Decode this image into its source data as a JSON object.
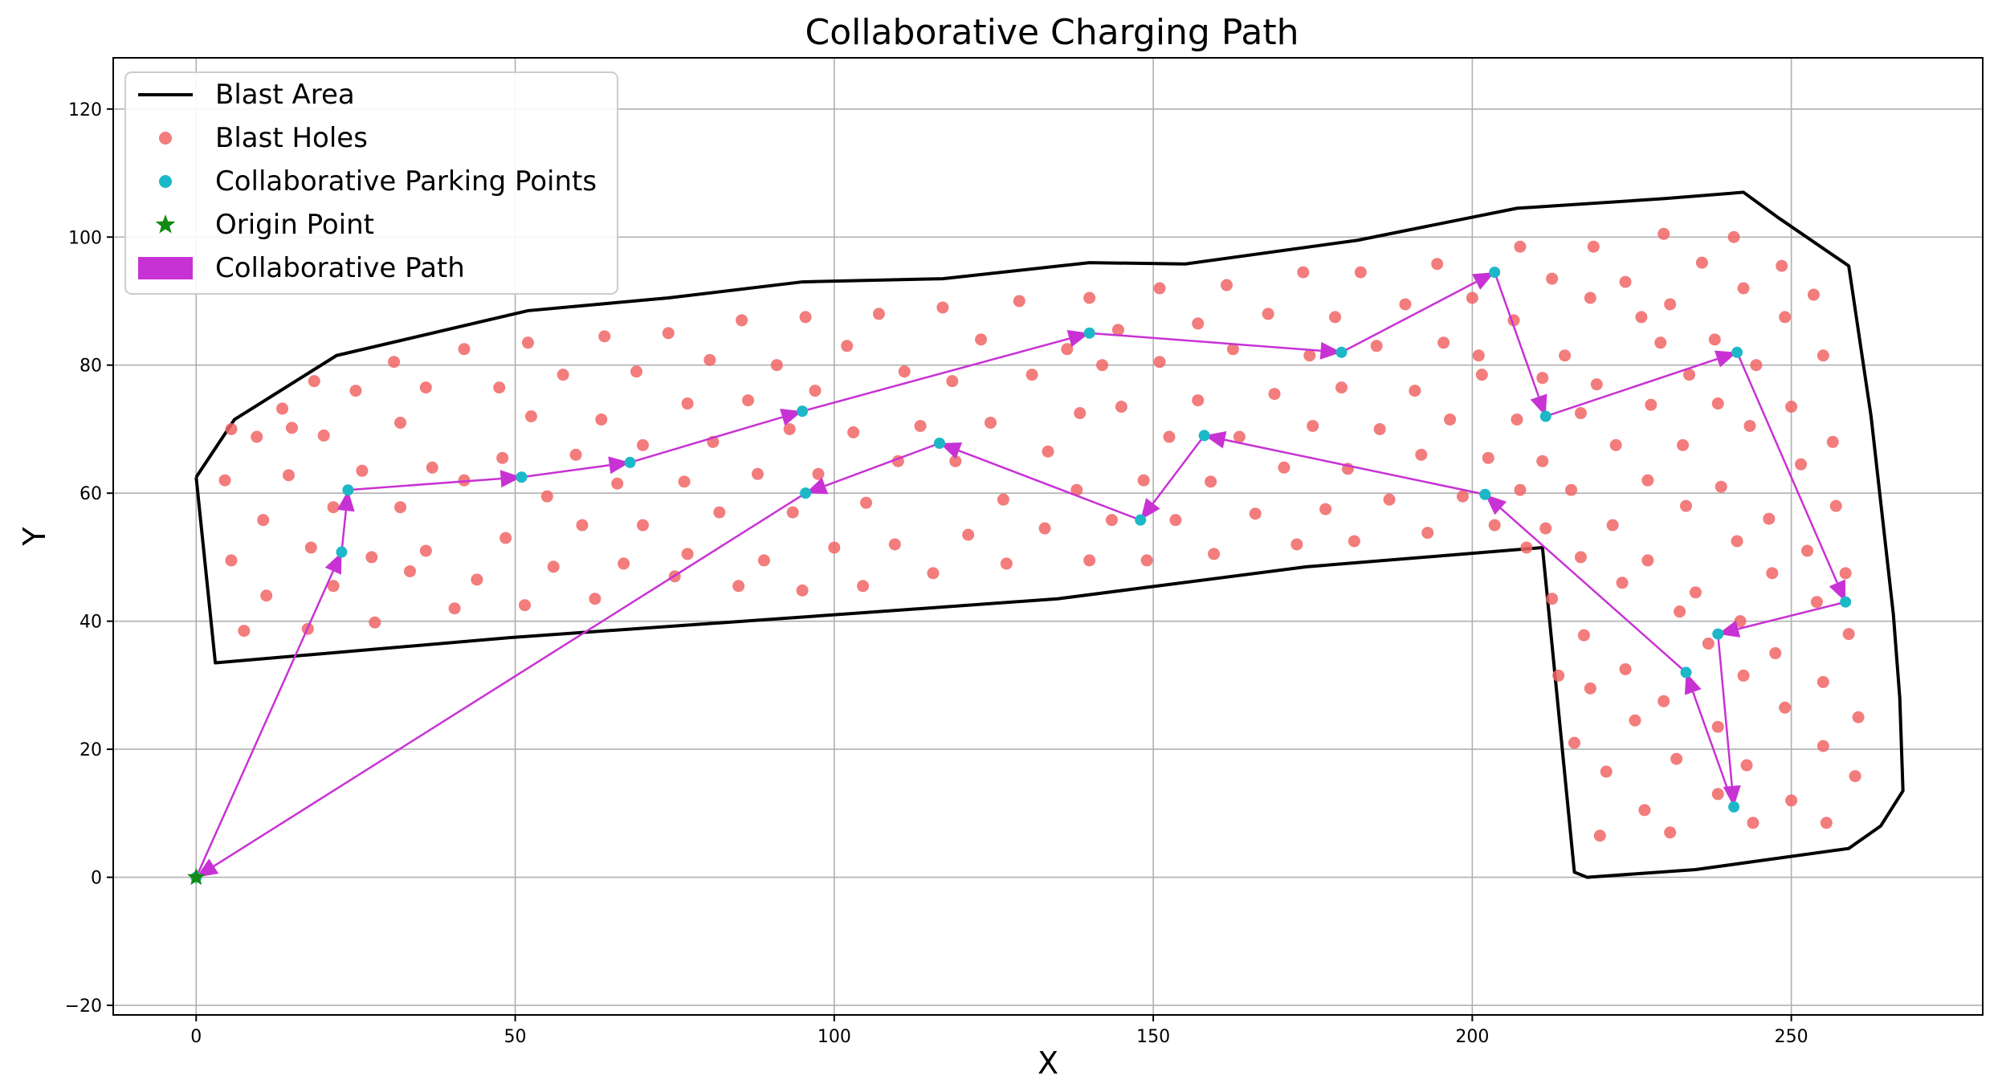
{
  "chart_data": {
    "type": "scatter",
    "title": "Collaborative Charging Path",
    "xlabel": "X",
    "ylabel": "Y",
    "xlim": [
      -13,
      280
    ],
    "ylim": [
      -21.5,
      128
    ],
    "xticks": [
      0,
      50,
      100,
      150,
      200,
      250
    ],
    "yticks": [
      -20,
      0,
      20,
      40,
      60,
      80,
      100,
      120
    ],
    "grid": true,
    "legend_position": "upper-left",
    "colors": {
      "blast_area": "#000000",
      "blast_holes": "#f16565",
      "parking_points": "#1cb8c8",
      "origin": "#138a13",
      "path": "#c832d4"
    },
    "legend": [
      {
        "key": "blast_area",
        "label": "Blast Area"
      },
      {
        "key": "blast_holes",
        "label": "Blast Holes"
      },
      {
        "key": "parking_points",
        "label": "Collaborative Parking Points"
      },
      {
        "key": "origin",
        "label": "Origin Point"
      },
      {
        "key": "path",
        "label": "Collaborative Path"
      }
    ],
    "blast_area": [
      [
        0,
        62.5
      ],
      [
        6,
        71.5
      ],
      [
        22,
        81.5
      ],
      [
        52,
        88.5
      ],
      [
        74,
        90.5
      ],
      [
        95,
        93
      ],
      [
        117,
        93.5
      ],
      [
        140,
        96
      ],
      [
        155,
        95.8
      ],
      [
        182,
        99.5
      ],
      [
        207,
        104.5
      ],
      [
        230,
        106
      ],
      [
        242.5,
        107
      ],
      [
        248,
        103
      ],
      [
        259,
        95.5
      ],
      [
        262.5,
        72
      ],
      [
        266,
        41
      ],
      [
        267,
        28
      ],
      [
        267.5,
        13.5
      ],
      [
        264,
        8
      ],
      [
        259,
        4.5
      ],
      [
        235,
        1.2
      ],
      [
        218,
        0
      ],
      [
        216,
        0.8
      ],
      [
        211,
        51.5
      ],
      [
        174,
        48.5
      ],
      [
        135,
        43.5
      ],
      [
        100,
        41
      ],
      [
        50,
        37.5
      ],
      [
        3,
        33.5
      ],
      [
        0,
        62.5
      ]
    ],
    "blast_holes": [
      [
        5.5,
        70
      ],
      [
        9.5,
        68.8
      ],
      [
        13.5,
        73.2
      ],
      [
        15,
        70.2
      ],
      [
        18.5,
        77.5
      ],
      [
        20,
        69
      ],
      [
        25,
        76
      ],
      [
        31,
        80.5
      ],
      [
        36,
        76.5
      ],
      [
        42,
        82.5
      ],
      [
        47.5,
        76.5
      ],
      [
        52,
        83.5
      ],
      [
        4.5,
        62
      ],
      [
        14.5,
        62.8
      ],
      [
        21.5,
        57.8
      ],
      [
        26,
        63.5
      ],
      [
        32,
        71
      ],
      [
        37,
        64
      ],
      [
        42,
        62
      ],
      [
        48,
        65.5
      ],
      [
        52.5,
        72
      ],
      [
        57.5,
        78.5
      ],
      [
        63.5,
        71.5
      ],
      [
        64,
        84.5
      ],
      [
        5.5,
        49.5
      ],
      [
        10.5,
        55.8
      ],
      [
        18,
        51.5
      ],
      [
        21.5,
        45.5
      ],
      [
        27.5,
        50
      ],
      [
        32,
        57.8
      ],
      [
        36,
        51
      ],
      [
        44,
        46.5
      ],
      [
        48.5,
        53
      ],
      [
        55,
        59.5
      ],
      [
        59.5,
        66
      ],
      [
        69,
        79
      ],
      [
        7.5,
        38.5
      ],
      [
        11,
        44
      ],
      [
        17.5,
        38.8
      ],
      [
        28,
        39.8
      ],
      [
        33.5,
        47.8
      ],
      [
        40.5,
        42
      ],
      [
        51.5,
        42.5
      ],
      [
        56,
        48.5
      ],
      [
        60.5,
        55
      ],
      [
        66,
        61.5
      ],
      [
        70,
        67.5
      ],
      [
        74,
        85
      ],
      [
        62.5,
        43.5
      ],
      [
        67,
        49
      ],
      [
        70,
        55
      ],
      [
        75,
        47
      ],
      [
        76.5,
        61.8
      ],
      [
        77,
        74
      ],
      [
        80.5,
        80.8
      ],
      [
        85.5,
        87
      ],
      [
        81,
        68
      ],
      [
        86.5,
        74.5
      ],
      [
        91,
        80
      ],
      [
        95.5,
        87.5
      ],
      [
        77,
        50.5
      ],
      [
        82,
        57
      ],
      [
        85,
        45.5
      ],
      [
        88,
        63
      ],
      [
        89,
        49.5
      ],
      [
        93,
        70
      ],
      [
        93.5,
        57
      ],
      [
        97,
        76
      ],
      [
        95,
        44.8
      ],
      [
        97.5,
        63
      ],
      [
        100,
        51.5
      ],
      [
        102,
        83
      ],
      [
        103,
        69.5
      ],
      [
        104.5,
        45.5
      ],
      [
        105,
        58.5
      ],
      [
        107,
        88
      ],
      [
        109.5,
        52
      ],
      [
        110,
        65
      ],
      [
        111,
        79
      ],
      [
        113.5,
        70.5
      ],
      [
        115.5,
        47.5
      ],
      [
        118.5,
        77.5
      ],
      [
        119,
        65
      ],
      [
        117,
        89
      ],
      [
        121,
        53.5
      ],
      [
        123,
        84
      ],
      [
        124.5,
        71
      ],
      [
        126.5,
        59
      ],
      [
        127,
        49
      ],
      [
        129,
        90
      ],
      [
        131,
        78.5
      ],
      [
        133,
        54.5
      ],
      [
        133.5,
        66.5
      ],
      [
        136.5,
        82.5
      ],
      [
        138,
        60.5
      ],
      [
        138.5,
        72.5
      ],
      [
        140,
        90.5
      ],
      [
        140,
        49.5
      ],
      [
        142,
        80
      ],
      [
        143.5,
        55.8
      ],
      [
        145,
        73.5
      ],
      [
        144.5,
        85.5
      ],
      [
        148.5,
        62
      ],
      [
        149,
        49.5
      ],
      [
        151,
        80.5
      ],
      [
        151,
        92
      ],
      [
        152.5,
        68.8
      ],
      [
        153.5,
        55.8
      ],
      [
        157,
        86.5
      ],
      [
        157,
        74.5
      ],
      [
        159,
        61.8
      ],
      [
        159.5,
        50.5
      ],
      [
        161.5,
        92.5
      ],
      [
        162.5,
        82.5
      ],
      [
        163.5,
        68.8
      ],
      [
        166,
        56.8
      ],
      [
        168,
        88
      ],
      [
        169,
        75.5
      ],
      [
        170.5,
        64
      ],
      [
        172.5,
        52
      ],
      [
        173.5,
        94.5
      ],
      [
        174.5,
        81.5
      ],
      [
        175,
        70.5
      ],
      [
        177,
        57.5
      ],
      [
        178.5,
        87.5
      ],
      [
        179.5,
        76.5
      ],
      [
        180.5,
        63.8
      ],
      [
        181.5,
        52.5
      ],
      [
        182.5,
        94.5
      ],
      [
        185,
        83
      ],
      [
        185.5,
        70
      ],
      [
        187,
        59
      ],
      [
        189.5,
        89.5
      ],
      [
        191,
        76
      ],
      [
        192,
        66
      ],
      [
        193,
        53.8
      ],
      [
        194.5,
        95.8
      ],
      [
        195.5,
        83.5
      ],
      [
        196.5,
        71.5
      ],
      [
        198.5,
        59.5
      ],
      [
        200,
        90.5
      ],
      [
        201,
        81.5
      ],
      [
        201.5,
        78.5
      ],
      [
        202.5,
        65.5
      ],
      [
        203.5,
        55
      ],
      [
        206.5,
        87
      ],
      [
        207,
        71.5
      ],
      [
        207.5,
        60.5
      ],
      [
        207.5,
        98.5
      ],
      [
        208.5,
        51.5
      ],
      [
        211,
        78
      ],
      [
        211,
        65
      ],
      [
        211.5,
        54.5
      ],
      [
        212.5,
        43.5
      ],
      [
        212.5,
        93.5
      ],
      [
        213.5,
        31.5
      ],
      [
        214.5,
        81.5
      ],
      [
        215.5,
        60.5
      ],
      [
        216,
        21
      ],
      [
        217,
        72.5
      ],
      [
        217,
        50
      ],
      [
        217.5,
        37.8
      ],
      [
        218.5,
        29.5
      ],
      [
        218.5,
        90.5
      ],
      [
        219,
        98.5
      ],
      [
        219.5,
        77
      ],
      [
        220,
        6.5
      ],
      [
        221,
        16.5
      ],
      [
        222,
        55
      ],
      [
        222.5,
        67.5
      ],
      [
        223.5,
        46
      ],
      [
        224,
        32.5
      ],
      [
        224,
        93
      ],
      [
        225.5,
        24.5
      ],
      [
        226.5,
        87.5
      ],
      [
        227,
        10.5
      ],
      [
        227.5,
        62
      ],
      [
        227.5,
        49.5
      ],
      [
        228,
        73.8
      ],
      [
        229.5,
        83.5
      ],
      [
        230,
        100.5
      ],
      [
        230,
        27.5
      ],
      [
        231,
        89.5
      ],
      [
        231,
        7
      ],
      [
        232,
        18.5
      ],
      [
        232.5,
        41.5
      ],
      [
        233,
        67.5
      ],
      [
        233.5,
        58
      ],
      [
        234,
        78.5
      ],
      [
        235,
        44.5
      ],
      [
        236,
        96
      ],
      [
        237,
        36.5
      ],
      [
        238,
        84
      ],
      [
        238.5,
        13
      ],
      [
        238.5,
        23.5
      ],
      [
        238.5,
        74
      ],
      [
        239,
        61
      ],
      [
        241,
        100
      ],
      [
        241.5,
        52.5
      ],
      [
        242,
        40
      ],
      [
        242.5,
        31.5
      ],
      [
        242.5,
        92
      ],
      [
        243,
        17.5
      ],
      [
        243.5,
        70.5
      ],
      [
        244,
        8.5
      ],
      [
        244.5,
        80
      ],
      [
        246.5,
        56
      ],
      [
        247,
        47.5
      ],
      [
        247.5,
        35
      ],
      [
        248.5,
        95.5
      ],
      [
        249,
        87.5
      ],
      [
        249,
        26.5
      ],
      [
        250,
        73.5
      ],
      [
        250,
        12
      ],
      [
        251.5,
        64.5
      ],
      [
        252.5,
        51
      ],
      [
        253.5,
        91
      ],
      [
        254,
        43
      ],
      [
        255,
        30.5
      ],
      [
        255,
        20.5
      ],
      [
        255,
        81.5
      ],
      [
        255.5,
        8.5
      ],
      [
        256.5,
        68
      ],
      [
        257,
        58
      ],
      [
        258.5,
        47.5
      ],
      [
        259,
        38
      ],
      [
        260,
        15.8
      ],
      [
        260.5,
        25
      ]
    ],
    "parking_points": [
      [
        0,
        0
      ],
      [
        22.8,
        50.8
      ],
      [
        23.8,
        60.5
      ],
      [
        51,
        62.5
      ],
      [
        68,
        64.8
      ],
      [
        95,
        72.8
      ],
      [
        140,
        85
      ],
      [
        179.5,
        82
      ],
      [
        203.5,
        94.5
      ],
      [
        211.5,
        72
      ],
      [
        241.5,
        82
      ],
      [
        258.5,
        43
      ],
      [
        238.5,
        38
      ],
      [
        241,
        11
      ],
      [
        233.5,
        32
      ],
      [
        202,
        59.8
      ],
      [
        158,
        69
      ],
      [
        148,
        55.8
      ],
      [
        116.5,
        67.8
      ],
      [
        95.5,
        60
      ]
    ],
    "origin": [
      0,
      0
    ],
    "path": [
      [
        0,
        0
      ],
      [
        22.8,
        50.8
      ],
      [
        23.8,
        60.5
      ],
      [
        51,
        62.5
      ],
      [
        68,
        64.8
      ],
      [
        95,
        72.8
      ],
      [
        140,
        85
      ],
      [
        179.5,
        82
      ],
      [
        203.5,
        94.5
      ],
      [
        211.5,
        72
      ],
      [
        241.5,
        82
      ],
      [
        258.5,
        43
      ],
      [
        238.5,
        38
      ],
      [
        241,
        11
      ],
      [
        233.5,
        32
      ],
      [
        202,
        59.8
      ],
      [
        158,
        69
      ],
      [
        148,
        55.8
      ],
      [
        116.5,
        67.8
      ],
      [
        95.5,
        60
      ],
      [
        0,
        0
      ]
    ]
  }
}
